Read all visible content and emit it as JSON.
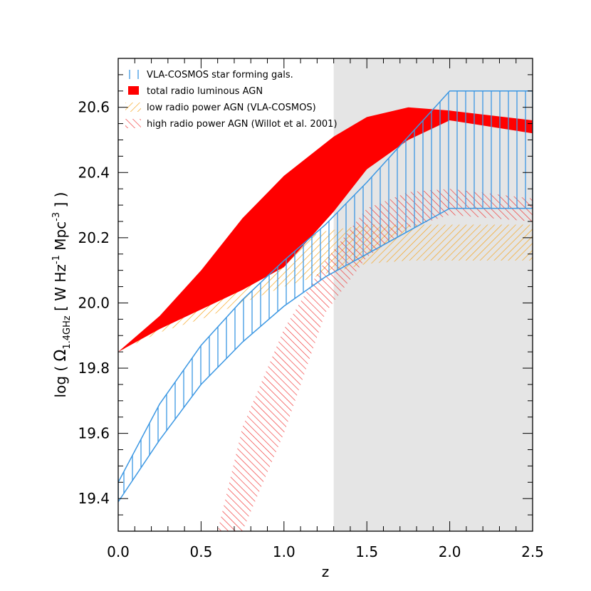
{
  "chart_data": {
    "type": "area",
    "xlabel": "z",
    "ylabel": {
      "prefix": "log ( ",
      "symbol": "Ω",
      "subscript": "1.4GHz",
      "units_open": " [ W Hz",
      "exp1": "-1",
      "units_mid": " Mpc",
      "exp2": "-3",
      "units_close": " ] )"
    },
    "xlim": [
      0.0,
      2.5
    ],
    "ylim": [
      19.3,
      20.75
    ],
    "xticks": [
      "0.0",
      "0.5",
      "1.0",
      "1.5",
      "2.0",
      "2.5"
    ],
    "yticks": [
      "19.4",
      "19.6",
      "19.8",
      "20.0",
      "20.2",
      "20.4",
      "20.6"
    ],
    "xtick_values": [
      0.0,
      0.5,
      1.0,
      1.5,
      2.0,
      2.5
    ],
    "ytick_values": [
      19.4,
      19.6,
      19.8,
      20.0,
      20.2,
      20.4,
      20.6
    ],
    "shaded_region": {
      "x_from": 1.3,
      "x_to": 2.5,
      "color": "#e5e5e5"
    },
    "legend_placement": "top-left",
    "colors": {
      "blue": "#3b97e3",
      "red": "#ff0000",
      "orange": "#f5a623",
      "hatch_red": "#f03030"
    },
    "series": [
      {
        "name": "VLA-COSMOS star forming gals.",
        "style": "vertical-hatch",
        "color": "#3b97e3",
        "x": [
          0.0,
          0.25,
          0.5,
          0.75,
          1.0,
          1.25,
          1.5,
          1.75,
          2.0,
          2.5
        ],
        "upper": [
          19.45,
          19.69,
          19.87,
          20.01,
          20.13,
          20.24,
          20.37,
          20.51,
          20.65,
          20.65
        ],
        "lower": [
          19.39,
          19.58,
          19.75,
          19.88,
          19.99,
          20.08,
          20.15,
          20.22,
          20.29,
          20.29
        ]
      },
      {
        "name": "total radio luminous AGN",
        "style": "solid",
        "color": "#ff0000",
        "x": [
          0.0,
          0.25,
          0.5,
          0.75,
          1.0,
          1.3,
          1.5,
          1.75,
          2.0,
          2.5
        ],
        "upper": [
          19.85,
          19.96,
          20.1,
          20.26,
          20.39,
          20.51,
          20.57,
          20.6,
          20.59,
          20.56
        ],
        "lower": [
          19.85,
          19.92,
          19.98,
          20.04,
          20.11,
          20.28,
          20.41,
          20.5,
          20.56,
          20.52
        ]
      },
      {
        "name": "low radio power AGN (VLA-COSMOS)",
        "style": "diagonal-hatch-down",
        "color": "#f5a623",
        "x": [
          0.0,
          0.25,
          0.5,
          0.75,
          1.0,
          1.25,
          1.5,
          1.75,
          2.0,
          2.5
        ],
        "upper": [
          19.85,
          19.94,
          20.04,
          20.12,
          20.18,
          20.22,
          20.24,
          20.24,
          20.24,
          20.24
        ],
        "lower": [
          19.85,
          19.91,
          19.95,
          20.0,
          20.05,
          20.09,
          20.12,
          20.13,
          20.13,
          20.13
        ]
      },
      {
        "name": "high radio power AGN (Willot et al. 2001)",
        "style": "diagonal-hatch-up",
        "color": "#f03030",
        "x": [
          0.6,
          0.75,
          1.0,
          1.25,
          1.5,
          1.75,
          2.0,
          2.5
        ],
        "upper": [
          19.3,
          19.62,
          19.92,
          20.13,
          20.29,
          20.34,
          20.35,
          20.32
        ],
        "lower": [
          19.3,
          19.3,
          19.6,
          19.97,
          20.14,
          20.23,
          20.27,
          20.25
        ]
      }
    ]
  }
}
